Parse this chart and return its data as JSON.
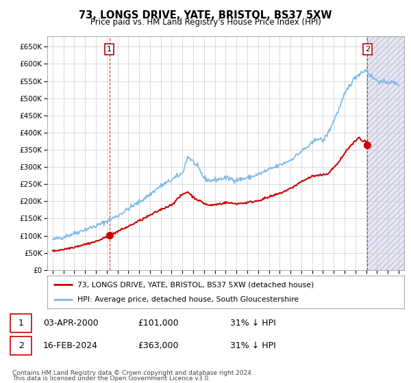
{
  "title": "73, LONGS DRIVE, YATE, BRISTOL, BS37 5XW",
  "subtitle": "Price paid vs. HM Land Registry's House Price Index (HPI)",
  "ylim": [
    0,
    680000
  ],
  "yticks": [
    0,
    50000,
    100000,
    150000,
    200000,
    250000,
    300000,
    350000,
    400000,
    450000,
    500000,
    550000,
    600000,
    650000
  ],
  "xlim_start": 1994.5,
  "xlim_end": 2027.5,
  "xticks": [
    1995,
    1996,
    1997,
    1998,
    1999,
    2000,
    2001,
    2002,
    2003,
    2004,
    2005,
    2006,
    2007,
    2008,
    2009,
    2010,
    2011,
    2012,
    2013,
    2014,
    2015,
    2016,
    2017,
    2018,
    2019,
    2020,
    2021,
    2022,
    2023,
    2024,
    2025,
    2026,
    2027
  ],
  "hpi_color": "#7ab8e8",
  "price_color": "#cc0000",
  "point1_x": 2000.25,
  "point1_value": 101000,
  "point1_label": "1",
  "point2_x": 2024.12,
  "point2_value": 363000,
  "point2_label": "2",
  "shade_start": 2024.12,
  "legend_line1": "73, LONGS DRIVE, YATE, BRISTOL, BS37 5XW (detached house)",
  "legend_line2": "HPI: Average price, detached house, South Gloucestershire",
  "table_row1": [
    "1",
    "03-APR-2000",
    "£101,000",
    "31% ↓ HPI"
  ],
  "table_row2": [
    "2",
    "16-FEB-2024",
    "£363,000",
    "31% ↓ HPI"
  ],
  "footnote1": "Contains HM Land Registry data © Crown copyright and database right 2024.",
  "footnote2": "This data is licensed under the Open Government Licence v3.0.",
  "bg_color": "#ffffff",
  "grid_color": "#cccccc",
  "hatch_color": "#d0d0e8"
}
